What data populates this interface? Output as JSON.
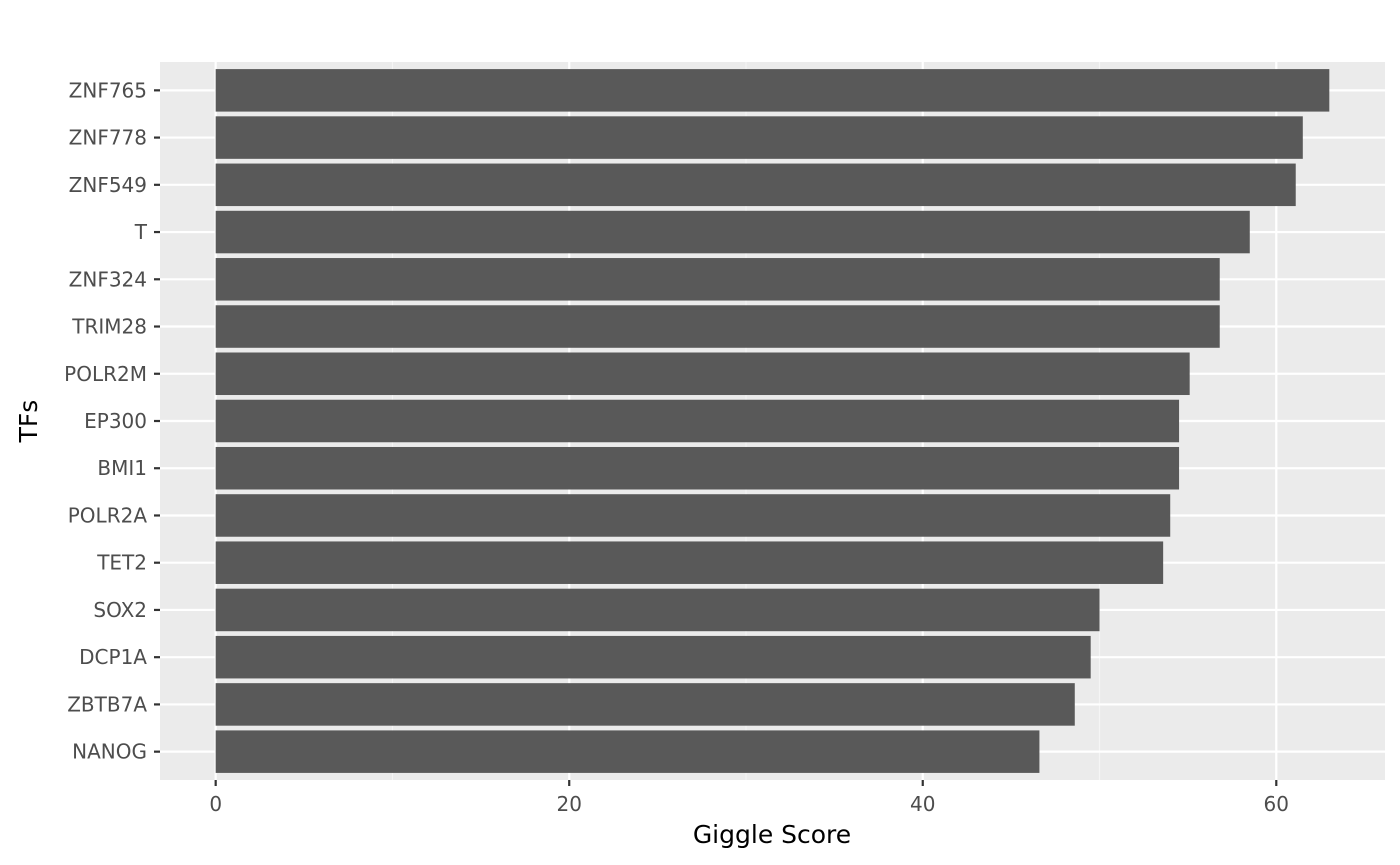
{
  "chart_data": {
    "type": "bar",
    "orientation": "horizontal",
    "title": "",
    "xlabel": "Giggle Score",
    "ylabel": "TFs",
    "xlim": [
      -3.15,
      66.15
    ],
    "x_ticks": [
      0,
      20,
      40,
      60
    ],
    "categories": [
      "ZNF765",
      "ZNF778",
      "ZNF549",
      "T",
      "ZNF324",
      "TRIM28",
      "POLR2M",
      "EP300",
      "BMI1",
      "POLR2A",
      "TET2",
      "SOX2",
      "DCP1A",
      "ZBTB7A",
      "NANOG"
    ],
    "values": [
      63.0,
      61.5,
      61.1,
      58.5,
      56.8,
      56.8,
      55.1,
      54.5,
      54.5,
      54.0,
      53.6,
      50.0,
      49.5,
      48.6,
      46.6
    ],
    "grid": true,
    "legend": "none",
    "colors": {
      "bar": "#595959",
      "panel": "#ebebeb",
      "grid_major": "#ffffff",
      "grid_minor": "#f5f5f5"
    }
  }
}
